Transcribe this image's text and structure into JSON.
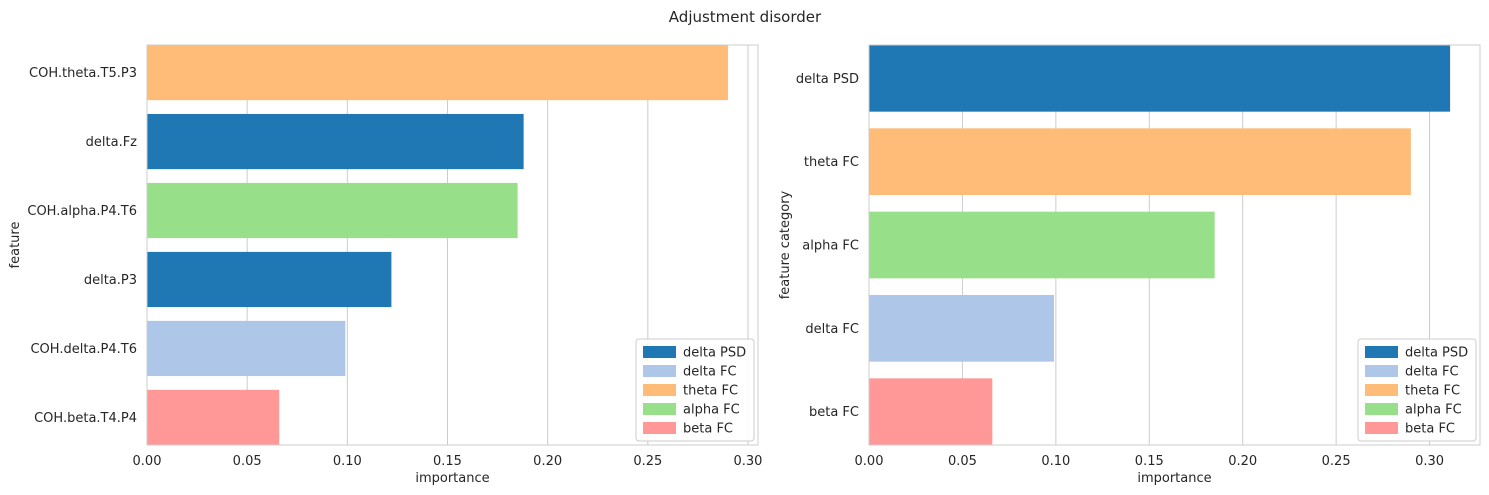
{
  "figure": {
    "title": "Adjustment disorder"
  },
  "colors": {
    "delta PSD": "#1f77b4",
    "delta FC": "#aec7e8",
    "theta FC": "#ffbb78",
    "alpha FC": "#98df8a",
    "beta FC": "#ff9896"
  },
  "chart_data": [
    {
      "type": "bar",
      "orientation": "horizontal",
      "xlabel": "importance",
      "ylabel": "feature",
      "xlim": [
        0,
        0.305
      ],
      "xticks": [
        0.0,
        0.05,
        0.1,
        0.15,
        0.2,
        0.25,
        0.3
      ],
      "xtick_labels": [
        "0.00",
        "0.05",
        "0.10",
        "0.15",
        "0.20",
        "0.25",
        "0.30"
      ],
      "grid": true,
      "legend_position": "bottom-right",
      "legend": [
        "delta PSD",
        "delta FC",
        "theta FC",
        "alpha FC",
        "beta FC"
      ],
      "categories": [
        "COH.theta.T5.P3",
        "delta.Fz",
        "COH.alpha.P4.T6",
        "delta.P3",
        "COH.delta.P4.T6",
        "COH.beta.T4.P4"
      ],
      "values": [
        0.29,
        0.188,
        0.185,
        0.122,
        0.099,
        0.066
      ],
      "bar_groups": [
        "theta FC",
        "delta PSD",
        "alpha FC",
        "delta PSD",
        "delta FC",
        "beta FC"
      ]
    },
    {
      "type": "bar",
      "orientation": "horizontal",
      "xlabel": "importance",
      "ylabel": "feature category",
      "xlim": [
        0,
        0.327
      ],
      "xticks": [
        0.0,
        0.05,
        0.1,
        0.15,
        0.2,
        0.25,
        0.3
      ],
      "xtick_labels": [
        "0.00",
        "0.05",
        "0.10",
        "0.15",
        "0.20",
        "0.25",
        "0.30"
      ],
      "grid": true,
      "legend_position": "bottom-right",
      "legend": [
        "delta PSD",
        "delta FC",
        "theta FC",
        "alpha FC",
        "beta FC"
      ],
      "categories": [
        "delta PSD",
        "theta FC",
        "alpha FC",
        "delta FC",
        "beta FC"
      ],
      "values": [
        0.311,
        0.29,
        0.185,
        0.099,
        0.066
      ],
      "bar_groups": [
        "delta PSD",
        "theta FC",
        "alpha FC",
        "delta FC",
        "beta FC"
      ]
    }
  ]
}
